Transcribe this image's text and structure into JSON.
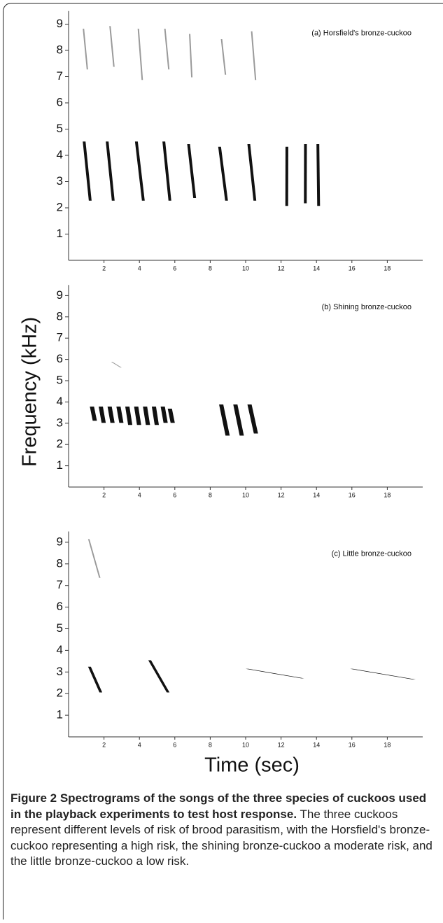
{
  "chart_data": [
    {
      "type": "spectrogram",
      "annotation": "(a) Horsfield's bronze-cuckoo",
      "color": "#111111",
      "harmonic_color": "#9a9a9a",
      "xlim": [
        0,
        20
      ],
      "xticks": [
        2,
        4,
        6,
        8,
        10,
        12,
        14,
        16,
        18
      ],
      "ylim": [
        0,
        9.5
      ],
      "yticks": [
        1,
        2,
        3,
        4,
        5,
        6,
        7,
        8,
        9
      ],
      "notes": [
        [
          0.8,
          1.3,
          4.5,
          2.3
        ],
        [
          2.1,
          2.6,
          4.5,
          2.3
        ],
        [
          3.75,
          4.3,
          4.5,
          2.3
        ],
        [
          5.3,
          5.8,
          4.5,
          2.3
        ],
        [
          6.7,
          7.2,
          4.4,
          2.4
        ],
        [
          8.45,
          9.0,
          4.3,
          2.3
        ],
        [
          10.1,
          10.6,
          4.4,
          2.3
        ],
        [
          12.25,
          12.4,
          4.3,
          2.1
        ],
        [
          13.3,
          13.45,
          4.4,
          2.2
        ],
        [
          14.0,
          14.2,
          4.4,
          2.1
        ]
      ],
      "harmonics": [
        [
          0.8,
          1.1,
          8.8,
          7.3
        ],
        [
          2.3,
          2.6,
          8.9,
          7.4
        ],
        [
          3.9,
          4.2,
          8.8,
          6.9
        ],
        [
          5.4,
          5.7,
          8.8,
          7.3
        ],
        [
          6.8,
          7.0,
          8.6,
          7.0
        ],
        [
          8.6,
          8.9,
          8.4,
          7.1
        ],
        [
          10.3,
          10.6,
          8.7,
          6.9
        ]
      ]
    },
    {
      "type": "spectrogram",
      "annotation": "(b) Shining bronze-cuckoo",
      "ylabel": "Frequency (kHz)",
      "color": "#111111",
      "harmonic_color": "#9a9a9a",
      "xlim": [
        0,
        20
      ],
      "xticks": [
        2,
        4,
        6,
        8,
        10,
        12,
        14,
        16,
        18
      ],
      "ylim": [
        0,
        9.5
      ],
      "yticks": [
        1,
        2,
        3,
        4,
        5,
        6,
        7,
        8,
        9
      ],
      "notes": [
        [
          1.2,
          1.6,
          3.7,
          3.2
        ],
        [
          1.7,
          2.1,
          3.7,
          3.1
        ],
        [
          2.2,
          2.6,
          3.7,
          3.1
        ],
        [
          2.7,
          3.1,
          3.7,
          3.1
        ],
        [
          3.2,
          3.6,
          3.7,
          3.0
        ],
        [
          3.7,
          4.1,
          3.7,
          3.0
        ],
        [
          4.2,
          4.6,
          3.7,
          3.0
        ],
        [
          4.7,
          5.1,
          3.7,
          3.0
        ],
        [
          5.2,
          5.6,
          3.7,
          3.1
        ],
        [
          5.6,
          6.0,
          3.6,
          3.1
        ],
        [
          8.5,
          9.1,
          3.8,
          2.5
        ],
        [
          9.3,
          9.9,
          3.8,
          2.5
        ],
        [
          10.1,
          10.7,
          3.8,
          2.6
        ]
      ],
      "harmonics": [
        [
          2.4,
          3.0,
          5.8,
          5.7
        ]
      ]
    },
    {
      "type": "spectrogram",
      "annotation": "(c) Little bronze-cuckoo",
      "xlabel": "Time (sec)",
      "color": "#111111",
      "harmonic_color": "#9a9a9a",
      "xlim": [
        0,
        20
      ],
      "xticks": [
        2,
        4,
        6,
        8,
        10,
        12,
        14,
        16,
        18
      ],
      "ylim": [
        0,
        9.5
      ],
      "yticks": [
        1,
        2,
        3,
        4,
        5,
        6,
        7,
        8,
        9
      ],
      "notes": [
        [
          1.1,
          1.9,
          3.1,
          2.2
        ],
        [
          4.5,
          5.7,
          3.4,
          2.2
        ],
        [
          10.0,
          13.3,
          3.0,
          2.85
        ],
        [
          15.9,
          19.6,
          3.0,
          2.8
        ]
      ],
      "harmonics": [
        [
          1.1,
          1.8,
          9.0,
          7.5
        ]
      ]
    }
  ],
  "caption": {
    "title": "Figure 2 Spectrograms of the songs of the three species of cuckoos used in the playback experiments to test host response.",
    "text": "The three cuckoos represent different levels of risk of brood parasitism, with the Horsfield's bronze-cuckoo representing a high risk, the shining bronze-cuckoo a moderate risk, and the little bronze-cuckoo a low risk."
  }
}
